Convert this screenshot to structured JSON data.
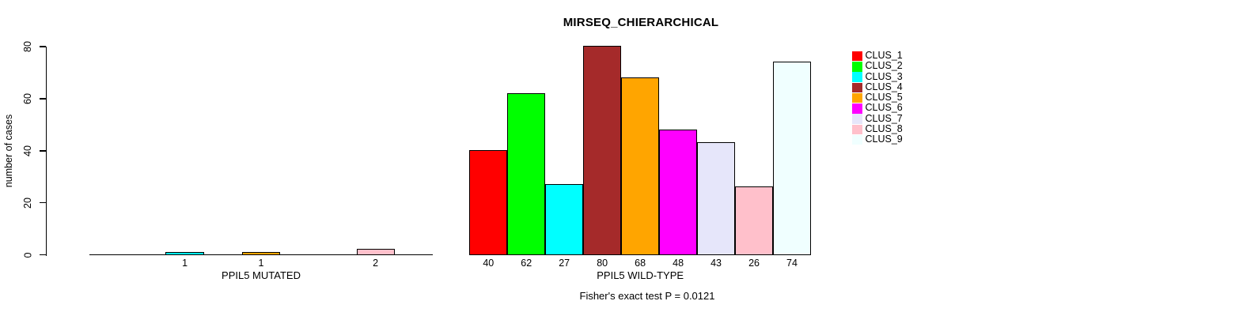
{
  "chart_data": {
    "type": "bar",
    "title": "MIRSEQ_CHIERARCHICAL",
    "subtitle": "Fisher's exact test P = 0.0121",
    "ylabel": "number of cases",
    "ylim": [
      0,
      80
    ],
    "yticks": [
      0,
      20,
      40,
      60,
      80
    ],
    "grid": false,
    "legend_position": "top-right",
    "legend": [
      {
        "label": "CLUS_1",
        "color": "#FF0000"
      },
      {
        "label": "CLUS_2",
        "color": "#00FF00"
      },
      {
        "label": "CLUS_3",
        "color": "#00FFFF"
      },
      {
        "label": "CLUS_4",
        "color": "#A52A2A"
      },
      {
        "label": "CLUS_5",
        "color": "#FFA500"
      },
      {
        "label": "CLUS_6",
        "color": "#FF00FF"
      },
      {
        "label": "CLUS_7",
        "color": "#E6E6FA"
      },
      {
        "label": "CLUS_8",
        "color": "#FFC0CB"
      },
      {
        "label": "CLUS_9",
        "color": "#F0FFFF"
      }
    ],
    "groups": [
      {
        "xlabel": "PPIL5 MUTATED",
        "slots": 9,
        "bars": [
          {
            "slot": 3,
            "cluster": "CLUS_3",
            "value": 1,
            "color": "#00FFFF"
          },
          {
            "slot": 5,
            "cluster": "CLUS_5",
            "value": 1,
            "color": "#FFA500"
          },
          {
            "slot": 8,
            "cluster": "CLUS_8",
            "value": 2,
            "color": "#FFC0CB"
          }
        ]
      },
      {
        "xlabel": "PPIL5 WILD-TYPE",
        "slots": 9,
        "bars": [
          {
            "slot": 1,
            "cluster": "CLUS_1",
            "value": 40,
            "color": "#FF0000"
          },
          {
            "slot": 2,
            "cluster": "CLUS_2",
            "value": 62,
            "color": "#00FF00"
          },
          {
            "slot": 3,
            "cluster": "CLUS_3",
            "value": 27,
            "color": "#00FFFF"
          },
          {
            "slot": 4,
            "cluster": "CLUS_4",
            "value": 80,
            "color": "#A52A2A"
          },
          {
            "slot": 5,
            "cluster": "CLUS_5",
            "value": 68,
            "color": "#FFA500"
          },
          {
            "slot": 6,
            "cluster": "CLUS_6",
            "value": 48,
            "color": "#FF00FF"
          },
          {
            "slot": 7,
            "cluster": "CLUS_7",
            "value": 43,
            "color": "#E6E6FA"
          },
          {
            "slot": 8,
            "cluster": "CLUS_8",
            "value": 26,
            "color": "#FFC0CB"
          },
          {
            "slot": 9,
            "cluster": "CLUS_9",
            "value": 74,
            "color": "#F0FFFF"
          }
        ]
      }
    ]
  }
}
